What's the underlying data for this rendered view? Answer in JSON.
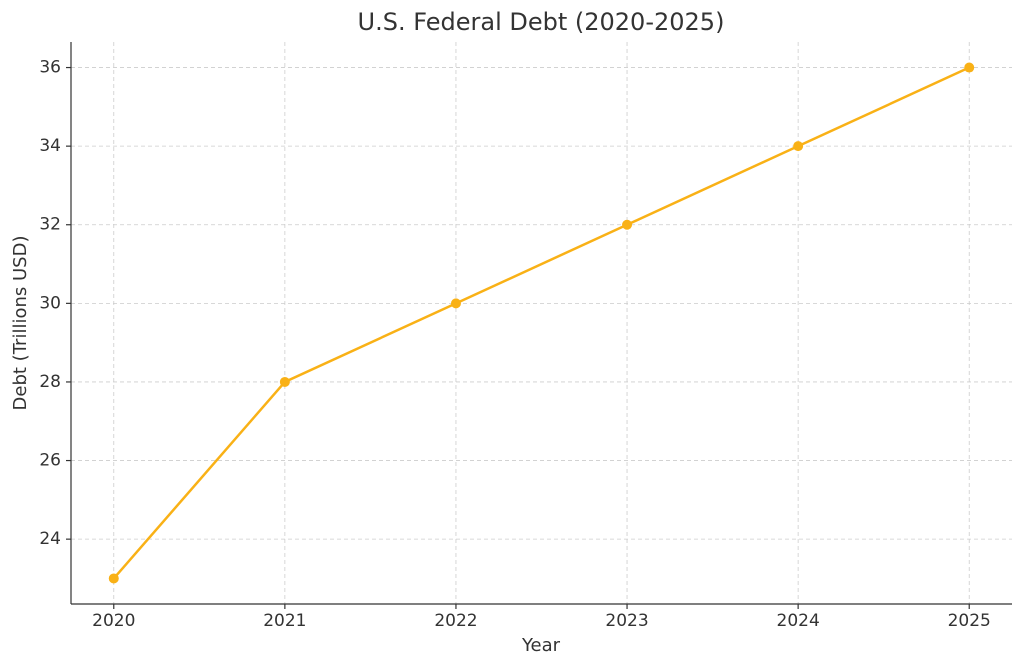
{
  "chart_data": {
    "type": "line",
    "title": "U.S. Federal Debt (2020-2025)",
    "x_label": "Year",
    "y_label": "Debt (Trillions USD)",
    "x": [
      2020,
      2021,
      2022,
      2023,
      2024,
      2025
    ],
    "series": [
      {
        "name": "Debt",
        "color": "#f9b116",
        "values": [
          23,
          28,
          30,
          32,
          34,
          36
        ]
      }
    ],
    "xlim": [
      2019.75,
      2025.25
    ],
    "xticks": [
      2020,
      2021,
      2022,
      2023,
      2024,
      2025
    ],
    "ylim": [
      22.35,
      36.65
    ],
    "yticks": [
      24,
      26,
      28,
      30,
      32,
      34,
      36
    ],
    "grid": true
  }
}
